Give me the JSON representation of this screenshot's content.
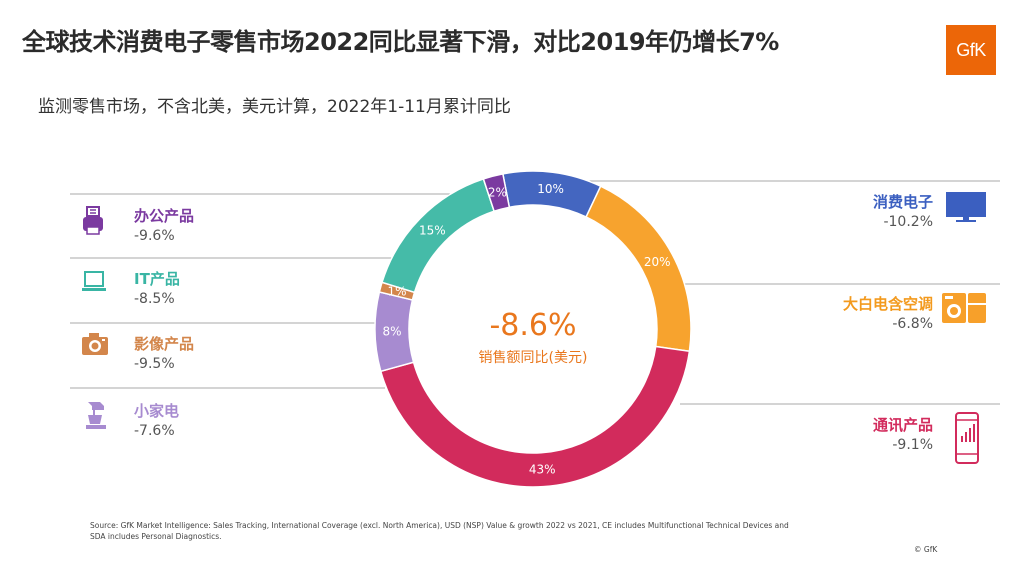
{
  "header": {
    "title": "全球技术消费电子零售市场2022同比显著下滑，对比2019年仍增长7%",
    "subtitle": "监测零售市场，不含北美，美元计算，2022年1-11月累计同比",
    "logo_text": "GfK"
  },
  "center": {
    "value": "-8.6%",
    "label": "销售额同比(美元)"
  },
  "categories_left": [
    {
      "name": "办公产品",
      "change": "-9.6%",
      "color": "#7b3aa0",
      "icon": "printer-icon"
    },
    {
      "name": "IT产品",
      "change": "-8.5%",
      "color": "#39b5a4",
      "icon": "laptop-icon"
    },
    {
      "name": "影像产品",
      "change": "-9.5%",
      "color": "#d3864b",
      "icon": "camera-icon"
    },
    {
      "name": "小家电",
      "change": "-7.6%",
      "color": "#a78bd0",
      "icon": "mixer-icon"
    }
  ],
  "categories_right": [
    {
      "name": "消费电子",
      "change": "-10.2%",
      "color": "#3b5fc0",
      "icon": "tv-icon"
    },
    {
      "name": "大白电含空调",
      "change": "-6.8%",
      "color": "#f7a02a",
      "icon": "washer-icon"
    },
    {
      "name": "通讯产品",
      "change": "-9.1%",
      "color": "#d22b5c",
      "icon": "phone-icon"
    }
  ],
  "chart_data": {
    "type": "pie",
    "title": "",
    "slices": [
      {
        "label": "消费电子",
        "value": 10,
        "text": "10%",
        "color": "#4466c0"
      },
      {
        "label": "大白电含空调",
        "value": 20,
        "text": "20%",
        "color": "#f7a32e"
      },
      {
        "label": "通讯产品",
        "value": 43,
        "text": "43%",
        "color": "#d22b5c"
      },
      {
        "label": "小家电",
        "value": 8,
        "text": "8%",
        "color": "#a78bd0"
      },
      {
        "label": "影像产品",
        "value": 1,
        "text": "1%",
        "color": "#d3864b"
      },
      {
        "label": "IT产品",
        "value": 15,
        "text": "15%",
        "color": "#45bba8"
      },
      {
        "label": "办公产品",
        "value": 2,
        "text": "2%",
        "color": "#7b3aa0"
      }
    ],
    "center_value": "-8.6%",
    "center_label": "销售额同比(美元)"
  },
  "footer": {
    "source": "Source: GfK Market Intelligence: Sales Tracking, International Coverage (excl. North America), USD (NSP) Value & growth 2022 vs 2021, CE includes Multifunctional Technical Devices and SDA includes Personal Diagnostics.",
    "copyright": "© GfK"
  }
}
